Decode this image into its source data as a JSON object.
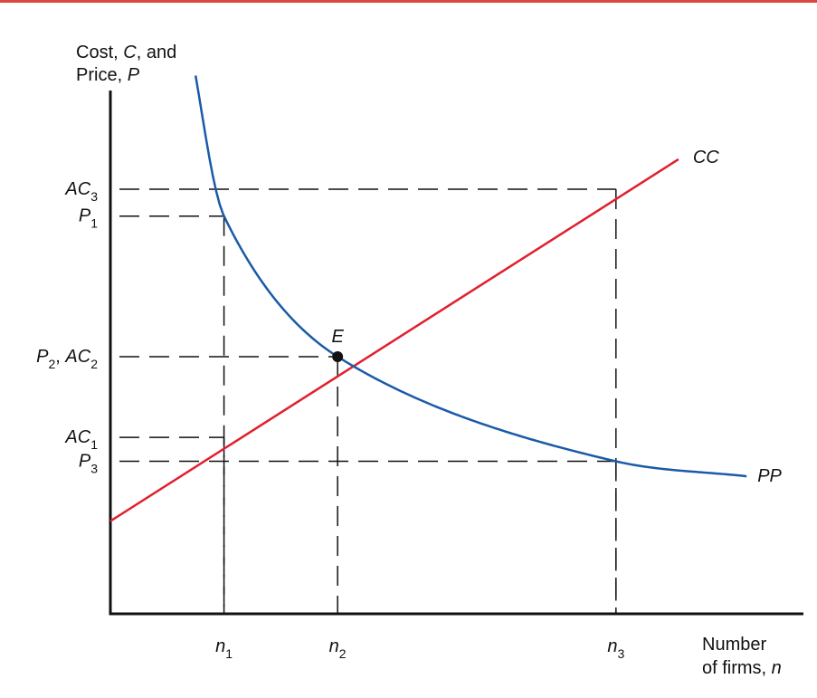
{
  "colors": {
    "top_rule": "#d9463c",
    "cc_line": "#e0202e",
    "pp_curve": "#1a5aa8",
    "guides": "#111111",
    "axis": "#111111"
  },
  "chart_data": {
    "type": "line",
    "title": "",
    "ylabel": {
      "line1_a": "Cost, ",
      "line1_b": "C",
      "line1_c": ", and",
      "line2_a": "Price, ",
      "line2_b": "P"
    },
    "xlabel": {
      "line1": "Number",
      "line2_a": "of firms, ",
      "line2_b": "n"
    },
    "xlim": [
      0,
      6.1
    ],
    "ylim": [
      0,
      8.75
    ],
    "x_ticks": [
      {
        "key": "n1",
        "value": 1,
        "base": "n",
        "sub": "1"
      },
      {
        "key": "n2",
        "value": 2,
        "base": "n",
        "sub": "2"
      },
      {
        "key": "n3",
        "value": 4.45,
        "base": "n",
        "sub": "3"
      }
    ],
    "y_ticks": [
      {
        "key": "AC3",
        "value": 7.1,
        "parts": [
          {
            "base": "AC",
            "sub": "3"
          }
        ]
      },
      {
        "key": "P1",
        "value": 6.65,
        "parts": [
          {
            "base": "P",
            "sub": "1"
          }
        ]
      },
      {
        "key": "P2AC2",
        "value": 4.3,
        "parts": [
          {
            "base": "P",
            "sub": "2"
          },
          {
            "sep": ", "
          },
          {
            "base": "AC",
            "sub": "2"
          }
        ]
      },
      {
        "key": "AC1",
        "value": 2.95,
        "parts": [
          {
            "base": "AC",
            "sub": "1"
          }
        ]
      },
      {
        "key": "P3",
        "value": 2.55,
        "parts": [
          {
            "base": "P",
            "sub": "3"
          }
        ]
      }
    ],
    "series": [
      {
        "name": "CC",
        "type": "line",
        "points": [
          [
            0,
            1.55
          ],
          [
            5.0,
            7.6
          ]
        ]
      },
      {
        "name": "PP",
        "type": "curve",
        "x_from": 0.75,
        "x_to": 5.6,
        "points": [
          [
            0.75,
            9.0
          ],
          [
            1.0,
            6.65
          ],
          [
            2.0,
            4.3
          ],
          [
            4.45,
            2.55
          ],
          [
            5.6,
            2.3
          ]
        ]
      }
    ],
    "equilibrium": {
      "label": "E",
      "x": 2,
      "y": 4.3
    },
    "guides": [
      {
        "x": 1,
        "y": 6.65
      },
      {
        "x": 1,
        "y": 2.95
      },
      {
        "x": 2,
        "y": 4.3
      },
      {
        "x": 4.45,
        "y": 7.1
      },
      {
        "x": 4.45,
        "y": 2.55
      }
    ],
    "grid": false
  }
}
